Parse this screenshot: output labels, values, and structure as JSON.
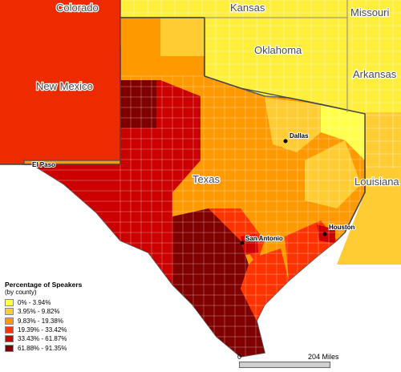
{
  "map": {
    "region_labels": [
      "Colorado",
      "Kansas",
      "Missouri",
      "Oklahoma",
      "Arkansas",
      "New Mexico",
      "Texas",
      "Louisiana"
    ],
    "cities": [
      "El Paso",
      "Dallas",
      "San Antonio",
      "Houston"
    ]
  },
  "legend": {
    "title": "Percentage of Speakers",
    "subtitle": "(by county)",
    "classes": [
      {
        "label": "0% - 3.94%",
        "color": "#ffff4c"
      },
      {
        "label": "3.95% - 9.82%",
        "color": "#ffcc33"
      },
      {
        "label": "9.83% - 19.38%",
        "color": "#ff9900"
      },
      {
        "label": "19.39% - 33.42%",
        "color": "#ff3300"
      },
      {
        "label": "33.43% - 61.87%",
        "color": "#cc0000"
      },
      {
        "label": "61.88% - 91.35%",
        "color": "#800000"
      }
    ]
  },
  "scale": {
    "start": "0",
    "end": "204 Miles"
  }
}
